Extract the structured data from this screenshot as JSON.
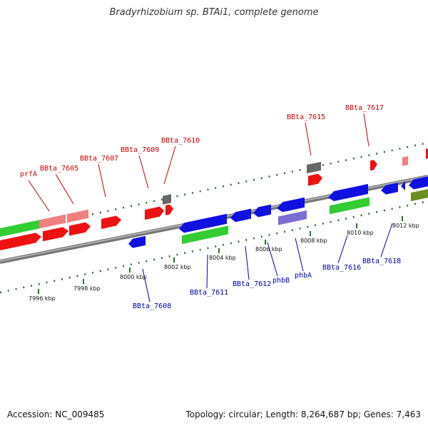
{
  "title": "Bradyrhizobium sp. BTAi1, complete genome",
  "footer": {
    "accession": "Accession: NC_009485",
    "summary": "Topology: circular; Length: 8,264,687 bp; Genes: 7,463"
  },
  "colors": {
    "forward_cds": "#ee1111",
    "forward_light": "#f08080",
    "reverse_cds": "#1010e0",
    "reverse_light": "#7a6fd0",
    "gene_bar": "#33cc33",
    "pseudo": "#666666",
    "olive": "#6b8e23",
    "upper_label": "#cc0000",
    "lower_label": "#0000aa",
    "tick": "#227722",
    "backbone": "#888888"
  },
  "scale": {
    "unit": "kbp",
    "marks": [
      "7996 kbp",
      "7998 kbp",
      "8000 kbp",
      "8002 kbp",
      "8004 kbp",
      "8006 kbp",
      "8008 kbp",
      "8010 kbp",
      "8012 kbp"
    ]
  },
  "upper_labels": [
    "prfA",
    "BBta_7605",
    "BBta_7607",
    "BBta_7609",
    "BBta_7610",
    "BBta_7615",
    "BBta_7617"
  ],
  "lower_labels": [
    "BBta_7608",
    "BBta_7611",
    "BBta_7612",
    "phbB",
    "phbA",
    "BBta_7616",
    "BBta_7618"
  ]
}
